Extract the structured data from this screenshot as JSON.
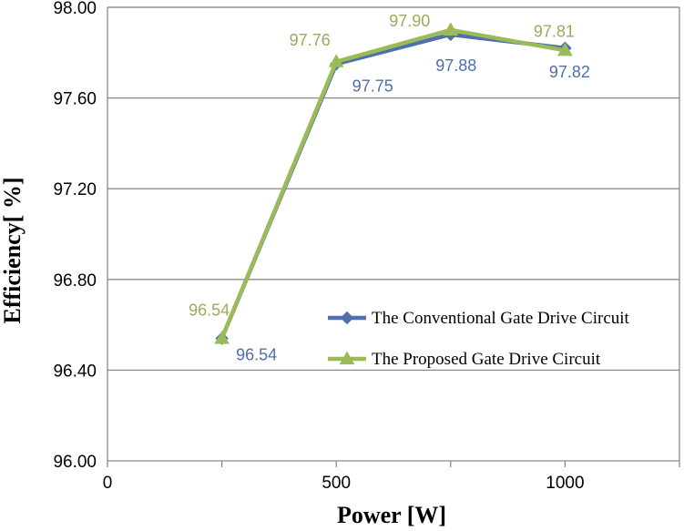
{
  "chart_data": {
    "type": "line",
    "xlabel": "Power [W]",
    "ylabel": "Efficiency[ %]",
    "xlim": [
      0,
      1250
    ],
    "ylim": [
      96.0,
      98.0
    ],
    "x_ticks": [
      0,
      500,
      1000
    ],
    "x_tick_labels": [
      "0",
      "500",
      "1000"
    ],
    "y_ticks": [
      96.0,
      96.4,
      96.8,
      97.2,
      97.6,
      98.0
    ],
    "y_tick_labels": [
      "96.00",
      "96.40",
      "96.80",
      "97.20",
      "97.60",
      "98.00"
    ],
    "grid": "horizontal",
    "legend_position": "center-right",
    "series": [
      {
        "name": "The Conventional Gate Drive Circuit",
        "color": "#4f6fad",
        "marker": "diamond",
        "x": [
          250,
          500,
          750,
          1000
        ],
        "y": [
          96.54,
          97.75,
          97.88,
          97.82
        ],
        "labels": [
          "96.54",
          "97.75",
          "97.88",
          "97.82"
        ],
        "label_position": "below"
      },
      {
        "name": "The Proposed Gate Drive Circuit",
        "color": "#9bbb59",
        "label_color": "#a0a85c",
        "marker": "triangle",
        "x": [
          250,
          500,
          750,
          1000
        ],
        "y": [
          96.54,
          97.76,
          97.9,
          97.81
        ],
        "labels": [
          "96.54",
          "97.76",
          "97.90",
          "97.81"
        ],
        "label_position": "above"
      }
    ]
  }
}
